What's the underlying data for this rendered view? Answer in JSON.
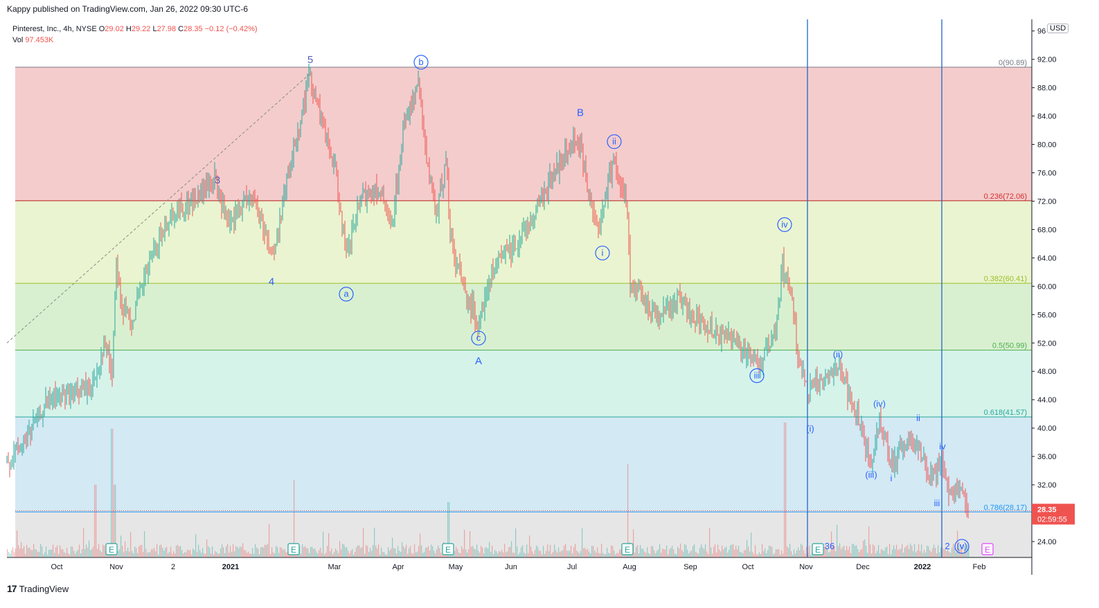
{
  "header": {
    "published": "Kappy published on TradingView.com, Jan 26, 2022 09:30 UTC-6",
    "currency": "USD"
  },
  "legend": {
    "symbol": "Pinterest, Inc., 4h, NYSE",
    "o_label": "O",
    "o": "29.02",
    "h_label": "H",
    "h": "29.22",
    "l_label": "L",
    "l": "27.98",
    "c_label": "C",
    "c": "28.35",
    "change": "−0.12 (−0.42%)",
    "vol_label": "Vol",
    "vol": "97.453K"
  },
  "colors": {
    "up": "#26a69a",
    "down": "#ef5350",
    "wave": "#2962ff",
    "fib_0": "#f4cccc",
    "fib_236": "#eaf4d0",
    "fib_382": "#d9f0d0",
    "fib_5": "#d6f3ea",
    "fib_618": "#d3e9f4",
    "fib_786": "#e6e6e6"
  },
  "footer": {
    "brand": "TradingView"
  },
  "chart_data": {
    "type": "candlestick",
    "title": "Pinterest, Inc., 4h, NYSE",
    "ylim": [
      21,
      96
    ],
    "y_ticks": [
      "24.00",
      "28.00",
      "32.00",
      "36.00",
      "40.00",
      "44.00",
      "48.00",
      "52.00",
      "56.00",
      "60.00",
      "64.00",
      "68.00",
      "72.00",
      "76.00",
      "80.00",
      "84.00",
      "88.00",
      "92.00",
      "96"
    ],
    "x_ticks": [
      "Oct",
      "Nov",
      "2",
      "2021",
      "Mar",
      "Apr",
      "May",
      "Jun",
      "Jul",
      "Aug",
      "Sep",
      "Oct",
      "Nov",
      "Dec",
      "2022",
      "Feb"
    ],
    "price_path": [
      [
        0,
        34
      ],
      [
        35,
        38
      ],
      [
        70,
        44
      ],
      [
        110,
        45
      ],
      [
        135,
        46
      ],
      [
        150,
        52
      ],
      [
        162,
        48
      ],
      [
        168,
        64
      ],
      [
        175,
        57
      ],
      [
        190,
        55
      ],
      [
        215,
        63
      ],
      [
        245,
        70
      ],
      [
        280,
        72
      ],
      [
        310,
        75
      ],
      [
        330,
        68
      ],
      [
        360,
        73
      ],
      [
        375,
        70
      ],
      [
        395,
        64
      ],
      [
        410,
        73
      ],
      [
        430,
        82
      ],
      [
        448,
        90
      ],
      [
        465,
        83
      ],
      [
        485,
        76
      ],
      [
        500,
        64
      ],
      [
        520,
        72
      ],
      [
        545,
        74
      ],
      [
        565,
        68
      ],
      [
        585,
        84
      ],
      [
        605,
        88
      ],
      [
        620,
        75
      ],
      [
        630,
        70
      ],
      [
        645,
        78
      ],
      [
        650,
        67
      ],
      [
        665,
        61
      ],
      [
        690,
        55
      ],
      [
        715,
        63
      ],
      [
        745,
        66
      ],
      [
        770,
        70
      ],
      [
        800,
        76
      ],
      [
        835,
        81
      ],
      [
        850,
        73
      ],
      [
        865,
        68
      ],
      [
        885,
        78
      ],
      [
        905,
        72
      ],
      [
        910,
        60
      ],
      [
        950,
        56
      ],
      [
        980,
        58
      ],
      [
        1010,
        55
      ],
      [
        1050,
        53
      ],
      [
        1075,
        51
      ],
      [
        1095,
        49
      ],
      [
        1120,
        53
      ],
      [
        1130,
        63
      ],
      [
        1145,
        58
      ],
      [
        1150,
        51
      ],
      [
        1165,
        45
      ],
      [
        1190,
        47
      ],
      [
        1210,
        49
      ],
      [
        1220,
        46
      ],
      [
        1240,
        41
      ],
      [
        1258,
        35
      ],
      [
        1270,
        41
      ],
      [
        1290,
        35
      ],
      [
        1310,
        38
      ],
      [
        1325,
        38
      ],
      [
        1340,
        33
      ],
      [
        1360,
        35
      ],
      [
        1372,
        31
      ],
      [
        1385,
        32
      ],
      [
        1398,
        28.35
      ]
    ],
    "fib_levels": [
      {
        "label": "0(90.89)",
        "value": 90.89
      },
      {
        "label": "0.236(72.06)",
        "value": 72.06
      },
      {
        "label": "0.382(60.41)",
        "value": 60.41
      },
      {
        "label": "0.5(50.99)",
        "value": 50.99
      },
      {
        "label": "0.618(41.57)",
        "value": 41.57
      },
      {
        "label": "0.786(28.17)",
        "value": 28.17
      }
    ],
    "last_price": "28.35",
    "countdown": "02:59:55",
    "wave_labels": [
      {
        "text": "3",
        "x": 314,
        "price": 74.5
      },
      {
        "text": "4",
        "x": 392,
        "price": 60.2
      },
      {
        "text": "5",
        "x": 448,
        "price": 91.5
      },
      {
        "text": "a",
        "x": 500,
        "price": 58.5,
        "circled": true
      },
      {
        "text": "b",
        "x": 608,
        "price": 91.2,
        "circled": true
      },
      {
        "text": "c",
        "x": 691,
        "price": 52.3,
        "circled": true
      },
      {
        "text": "A",
        "x": 691,
        "price": 49.0
      },
      {
        "text": "B",
        "x": 838,
        "price": 84.0
      },
      {
        "text": "ii",
        "x": 887,
        "price": 80.0,
        "circled": true
      },
      {
        "text": "i",
        "x": 870,
        "price": 64.3,
        "circled": true
      },
      {
        "text": "iv",
        "x": 1133,
        "price": 68.3,
        "circled": true
      },
      {
        "text": "iii",
        "x": 1093,
        "price": 47.0,
        "circled": true
      },
      {
        "text": "(i)",
        "x": 1170,
        "price": 39.5
      },
      {
        "text": "(ii)",
        "x": 1210,
        "price": 50.0
      },
      {
        "text": "(iii)",
        "x": 1258,
        "price": 33.0
      },
      {
        "text": "(iv)",
        "x": 1270,
        "price": 43.0
      },
      {
        "text": "i",
        "x": 1287,
        "price": 32.5
      },
      {
        "text": "ii",
        "x": 1326,
        "price": 41.0
      },
      {
        "text": "iii",
        "x": 1353,
        "price": 29.0
      },
      {
        "text": "iv",
        "x": 1361,
        "price": 37.0
      },
      {
        "text": "v",
        "x": 1389,
        "price": 22.5
      },
      {
        "text": "(v)",
        "x": 1389,
        "price": 21.5
      },
      {
        "text": "v",
        "x": 1389,
        "price": 20.5,
        "circled": true
      },
      {
        "text": "2",
        "x": 1368,
        "price": 20.5
      },
      {
        "text": "36",
        "x": 1198,
        "price": 20.5
      }
    ],
    "earnings_markers": [
      {
        "x": 161,
        "label": "E"
      },
      {
        "x": 424,
        "label": "E"
      },
      {
        "x": 647,
        "label": "E"
      },
      {
        "x": 906,
        "label": "E"
      },
      {
        "x": 1181,
        "label": "E"
      },
      {
        "x": 1426,
        "label": "E"
      }
    ],
    "vertical_lines_x": [
      1166,
      1360
    ],
    "trend_line": {
      "from": [
        10,
        52.0
      ],
      "to": [
        448,
        90.0
      ]
    }
  }
}
